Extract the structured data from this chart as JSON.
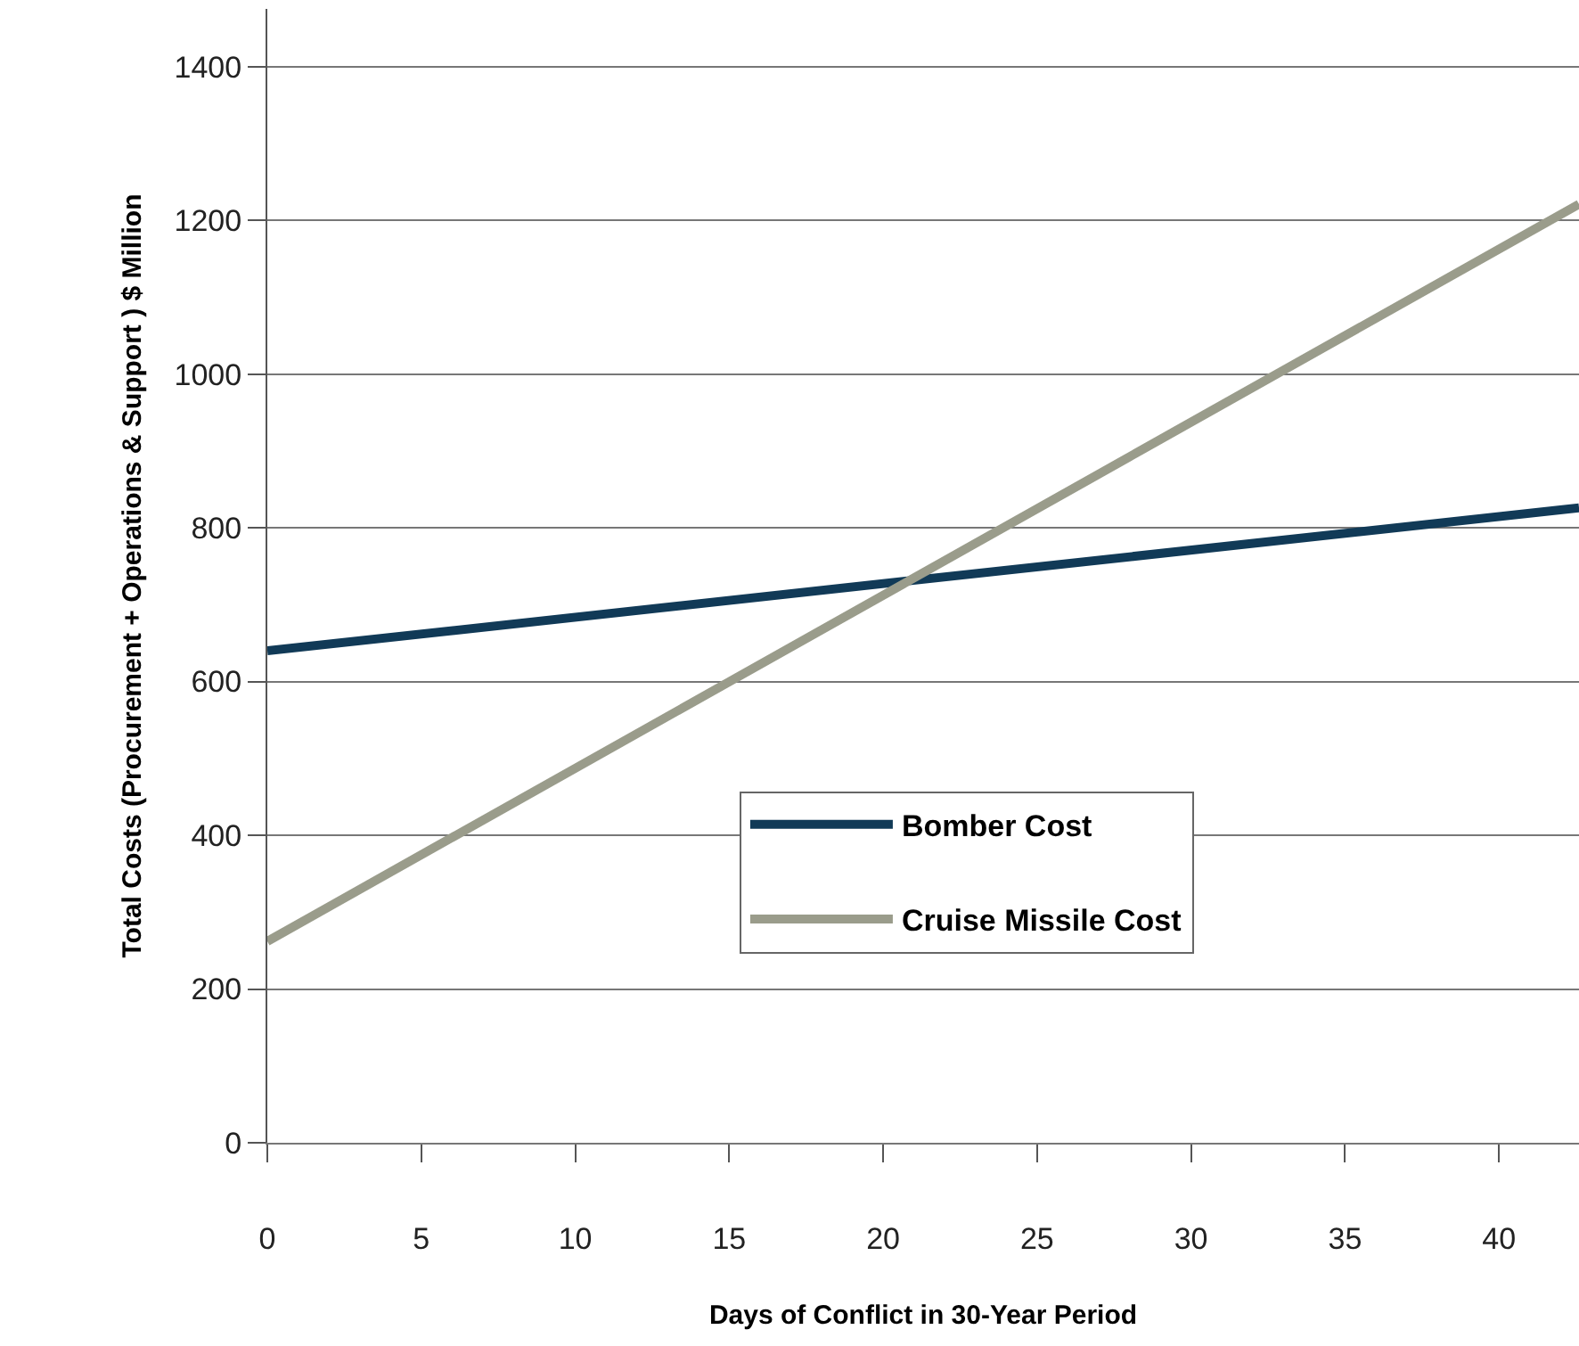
{
  "chart_data": {
    "type": "line",
    "xlabel": "Days of Conflict in 30-Year Period",
    "ylabel": "Total Costs (Procurement + Operations & Support ) $ Million",
    "xlim": [
      0,
      42.6
    ],
    "xticks": [
      0,
      5,
      10,
      15,
      20,
      25,
      30,
      35,
      40
    ],
    "ylim": [
      0,
      1475
    ],
    "yticks": [
      0,
      200,
      400,
      600,
      800,
      1000,
      1200,
      1400
    ],
    "x": [
      0,
      42.6
    ],
    "grid": "y",
    "legend": "bottom",
    "marker": "none",
    "line_style": "solid",
    "series": [
      {
        "name": "Bomber Cost",
        "color": "#113a57",
        "values": [
          640,
          826
        ]
      },
      {
        "name": "Cruise Missile Cost",
        "color": "#9a9c8b",
        "values": [
          262,
          1221
        ]
      }
    ]
  }
}
